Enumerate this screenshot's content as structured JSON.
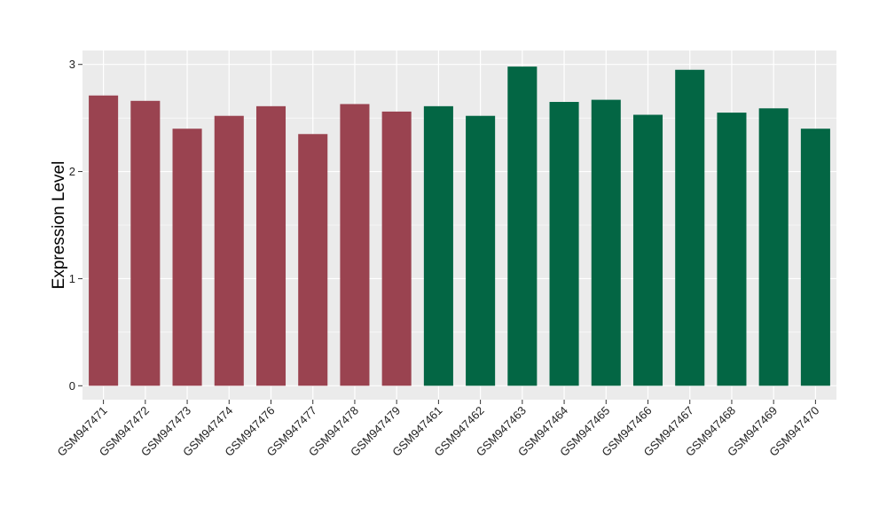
{
  "chart_data": {
    "type": "bar",
    "title": "",
    "xlabel": "",
    "ylabel": "Expression Level",
    "ylim": [
      -0.13,
      3.13
    ],
    "yticks": [
      0,
      1,
      2,
      3
    ],
    "grid": true,
    "legend": "none",
    "categories": [
      "GSM947471",
      "GSM947472",
      "GSM947473",
      "GSM947474",
      "GSM947476",
      "GSM947477",
      "GSM947478",
      "GSM947479",
      "GSM947461",
      "GSM947462",
      "GSM947463",
      "GSM947464",
      "GSM947465",
      "GSM947466",
      "GSM947467",
      "GSM947468",
      "GSM947469",
      "GSM947470"
    ],
    "values": [
      2.71,
      2.66,
      2.4,
      2.52,
      2.61,
      2.35,
      2.63,
      2.56,
      2.61,
      2.52,
      2.98,
      2.65,
      2.67,
      2.53,
      2.95,
      2.55,
      2.59,
      2.4
    ],
    "groups": [
      0,
      0,
      0,
      0,
      0,
      0,
      0,
      0,
      1,
      1,
      1,
      1,
      1,
      1,
      1,
      1,
      1,
      1
    ],
    "colors": {
      "group0": "#9a4350",
      "group1": "#036644",
      "panel": "#ebebeb",
      "grid": "#ffffff"
    }
  }
}
